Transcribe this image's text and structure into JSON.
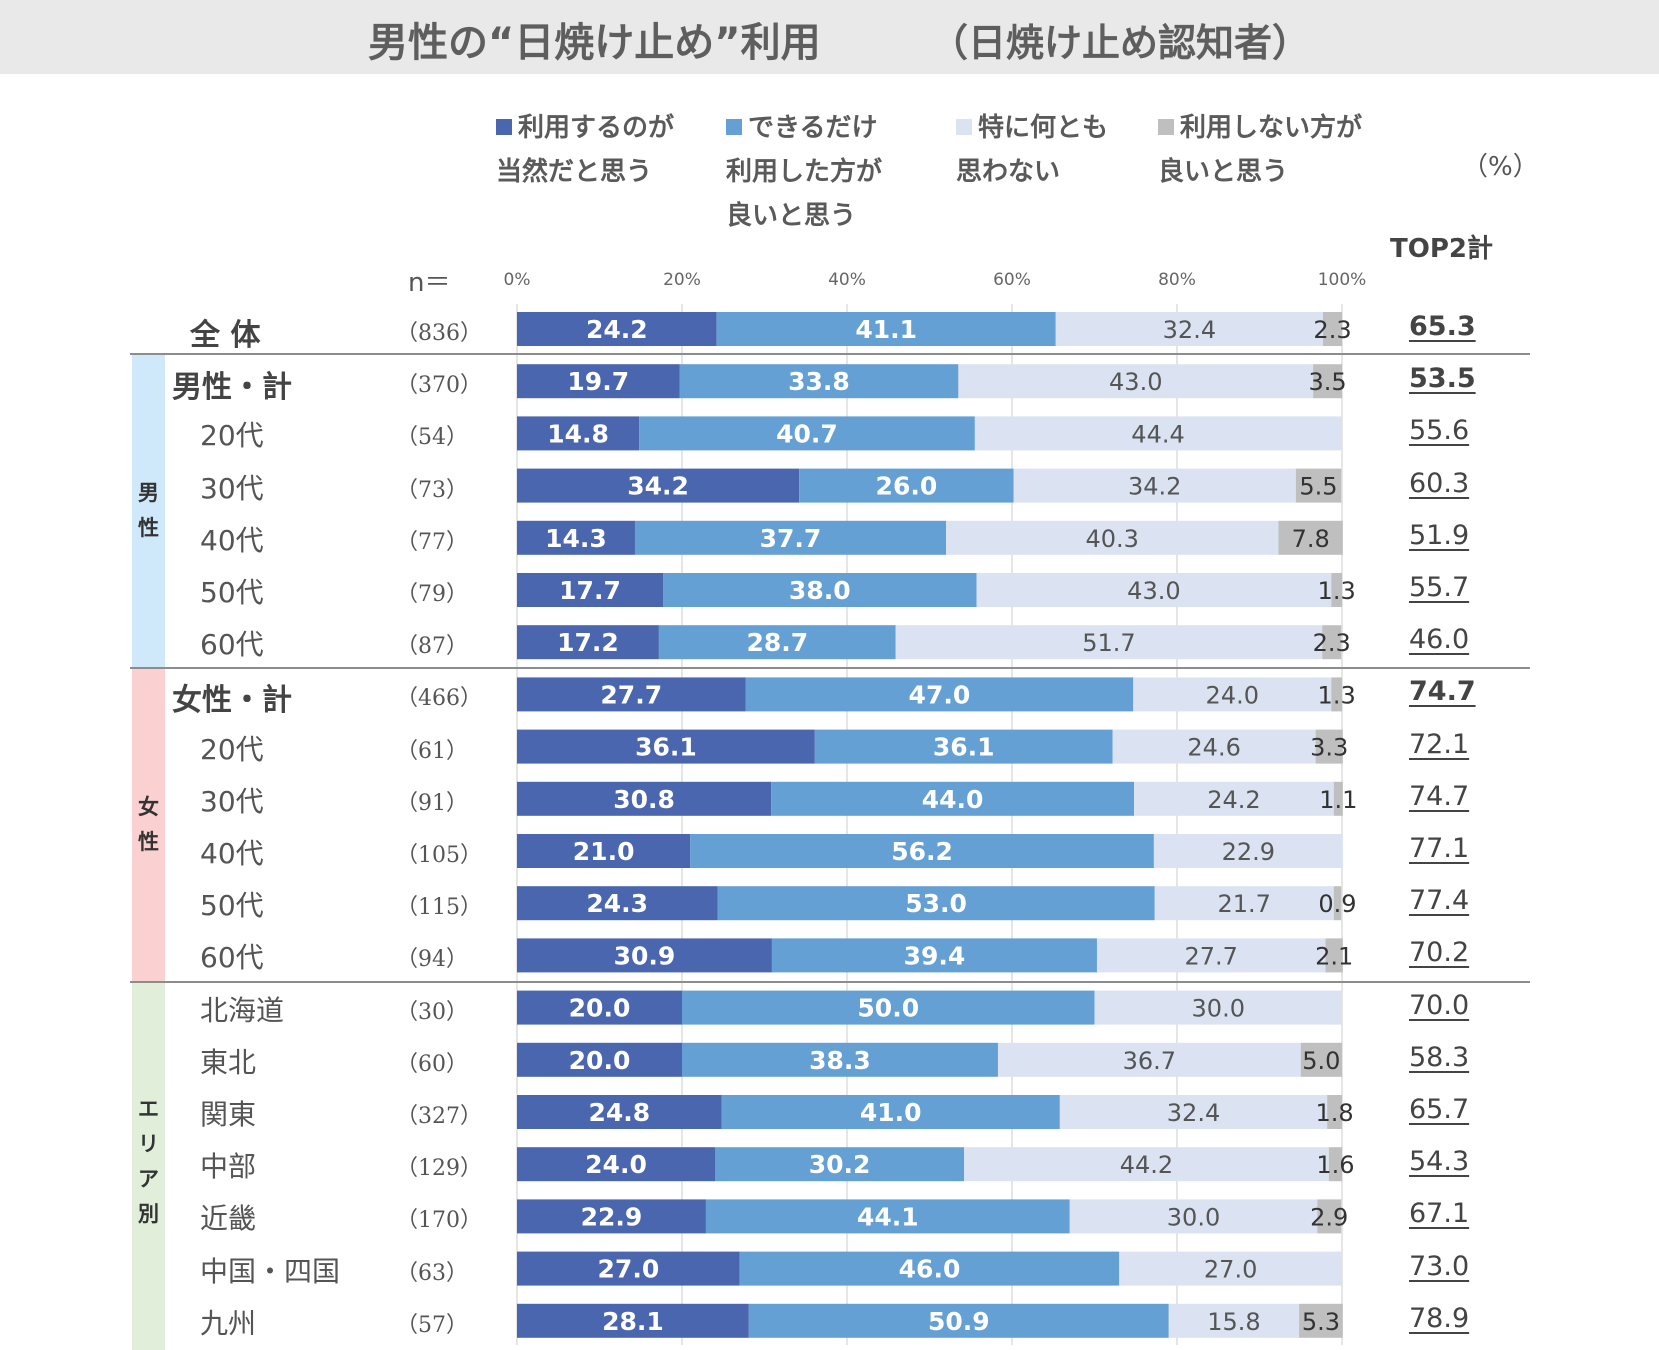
{
  "title": "男性の“日焼け止め”利用",
  "subtitle": "（日焼け止め認知者）",
  "unit_label": "（%）",
  "top2_header": "TOP2計",
  "n_header": "n＝",
  "legend": [
    {
      "label": "利用するのが\n当然だと思う",
      "color": "#4a66ae"
    },
    {
      "label": "できるだけ\n利用した方が\n良いと思う",
      "color": "#65a0d4"
    },
    {
      "label": "特に何とも\n思わない",
      "color": "#dbe3f2"
    },
    {
      "label": "利用しない方が\n良いと思う",
      "color": "#bfbfbf"
    }
  ],
  "groups": [
    {
      "label": "男\n性",
      "color": "#cfe9fb"
    },
    {
      "label": "女\n性",
      "color": "#fbd0d0"
    },
    {
      "label": "エ\nリ\nア\n別",
      "color": "#e1efda"
    }
  ],
  "chart_data": {
    "type": "bar",
    "orientation": "horizontal",
    "stacked": true,
    "xlim": [
      0,
      100
    ],
    "x_ticks": [
      "0%",
      "20%",
      "40%",
      "60%",
      "80%",
      "100%"
    ],
    "series_names": [
      "利用するのが当然だと思う",
      "できるだけ利用した方が良いと思う",
      "特に何とも思わない",
      "利用しない方が良いと思う"
    ],
    "rows": [
      {
        "label": "全 体",
        "n": "（836）",
        "values": [
          24.2,
          41.1,
          32.4,
          2.3
        ],
        "labels": [
          "24.2",
          "41.1",
          "32.4",
          "2.3"
        ],
        "top2": "65.3",
        "bold": true
      },
      {
        "label": "男性・計",
        "n": "（370）",
        "values": [
          19.7,
          33.8,
          43.0,
          3.5
        ],
        "labels": [
          "19.7",
          "33.8",
          "43.0",
          "3.5"
        ],
        "top2": "53.5",
        "bold": true
      },
      {
        "label": "20代",
        "n": "（54）",
        "values": [
          14.8,
          40.7,
          44.4,
          0
        ],
        "labels": [
          "14.8",
          "40.7",
          "44.4",
          ""
        ],
        "top2": "55.6",
        "bold": false
      },
      {
        "label": "30代",
        "n": "（73）",
        "values": [
          34.2,
          26.0,
          34.2,
          5.5
        ],
        "labels": [
          "34.2",
          "26.0",
          "34.2",
          "5.5"
        ],
        "top2": "60.3",
        "bold": false
      },
      {
        "label": "40代",
        "n": "（77）",
        "values": [
          14.3,
          37.7,
          40.3,
          7.8
        ],
        "labels": [
          "14.3",
          "37.7",
          "40.3",
          "7.8"
        ],
        "top2": "51.9",
        "bold": false
      },
      {
        "label": "50代",
        "n": "（79）",
        "values": [
          17.7,
          38.0,
          43.0,
          1.3
        ],
        "labels": [
          "17.7",
          "38.0",
          "43.0",
          "1.3"
        ],
        "top2": "55.7",
        "bold": false
      },
      {
        "label": "60代",
        "n": "（87）",
        "values": [
          17.2,
          28.7,
          51.7,
          2.3
        ],
        "labels": [
          "17.2",
          "28.7",
          "51.7",
          "2.3"
        ],
        "top2": "46.0",
        "bold": false
      },
      {
        "label": "女性・計",
        "n": "（466）",
        "values": [
          27.7,
          47.0,
          24.0,
          1.3
        ],
        "labels": [
          "27.7",
          "47.0",
          "24.0",
          "1.3"
        ],
        "top2": "74.7",
        "bold": true
      },
      {
        "label": "20代",
        "n": "（61）",
        "values": [
          36.1,
          36.1,
          24.6,
          3.3
        ],
        "labels": [
          "36.1",
          "36.1",
          "24.6",
          "3.3"
        ],
        "top2": "72.1",
        "bold": false
      },
      {
        "label": "30代",
        "n": "（91）",
        "values": [
          30.8,
          44.0,
          24.2,
          1.1
        ],
        "labels": [
          "30.8",
          "44.0",
          "24.2",
          "1.1"
        ],
        "top2": "74.7",
        "bold": false
      },
      {
        "label": "40代",
        "n": "（105）",
        "values": [
          21.0,
          56.2,
          22.9,
          0
        ],
        "labels": [
          "21.0",
          "56.2",
          "22.9",
          ""
        ],
        "top2": "77.1",
        "bold": false
      },
      {
        "label": "50代",
        "n": "（115）",
        "values": [
          24.3,
          53.0,
          21.7,
          0.9
        ],
        "labels": [
          "24.3",
          "53.0",
          "21.7",
          "0.9"
        ],
        "top2": "77.4",
        "bold": false
      },
      {
        "label": "60代",
        "n": "（94）",
        "values": [
          30.9,
          39.4,
          27.7,
          2.1
        ],
        "labels": [
          "30.9",
          "39.4",
          "27.7",
          "2.1"
        ],
        "top2": "70.2",
        "bold": false
      },
      {
        "label": "北海道",
        "n": "（30）",
        "values": [
          20.0,
          50.0,
          30.0,
          0
        ],
        "labels": [
          "20.0",
          "50.0",
          "30.0",
          ""
        ],
        "top2": "70.0",
        "bold": false
      },
      {
        "label": "東北",
        "n": "（60）",
        "values": [
          20.0,
          38.3,
          36.7,
          5.0
        ],
        "labels": [
          "20.0",
          "38.3",
          "36.7",
          "5.0"
        ],
        "top2": "58.3",
        "bold": false
      },
      {
        "label": "関東",
        "n": "（327）",
        "values": [
          24.8,
          41.0,
          32.4,
          1.8
        ],
        "labels": [
          "24.8",
          "41.0",
          "32.4",
          "1.8"
        ],
        "top2": "65.7",
        "bold": false
      },
      {
        "label": "中部",
        "n": "（129）",
        "values": [
          24.0,
          30.2,
          44.2,
          1.6
        ],
        "labels": [
          "24.0",
          "30.2",
          "44.2",
          "1.6"
        ],
        "top2": "54.3",
        "bold": false
      },
      {
        "label": "近畿",
        "n": "（170）",
        "values": [
          22.9,
          44.1,
          30.0,
          2.9
        ],
        "labels": [
          "22.9",
          "44.1",
          "30.0",
          "2.9"
        ],
        "top2": "67.1",
        "bold": false
      },
      {
        "label": "中国・四国",
        "n": "（63）",
        "values": [
          27.0,
          46.0,
          27.0,
          0
        ],
        "labels": [
          "27.0",
          "46.0",
          "27.0",
          ""
        ],
        "top2": "73.0",
        "bold": false
      },
      {
        "label": "九州",
        "n": "（57）",
        "values": [
          28.1,
          50.9,
          15.8,
          5.3
        ],
        "labels": [
          "28.1",
          "50.9",
          "15.8",
          "5.3"
        ],
        "top2": "78.9",
        "bold": false
      }
    ]
  }
}
